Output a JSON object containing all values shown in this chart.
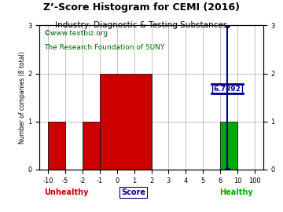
{
  "title": "Z’-Score Histogram for CEMI (2016)",
  "subtitle": "Industry: Diagnostic & Testing Substances",
  "watermark1": "©www.textbiz.org",
  "watermark2": "The Research Foundation of SUNY",
  "xlabel": "Score",
  "ylabel": "Number of companies (8 total)",
  "bar_positions": [
    {
      "x0_tick": 0,
      "x1_tick": 1,
      "height": 1,
      "color": "#cc0000"
    },
    {
      "x0_tick": 2,
      "x1_tick": 3,
      "height": 1,
      "color": "#cc0000"
    },
    {
      "x0_tick": 3,
      "x1_tick": 6,
      "height": 2,
      "color": "#cc0000"
    },
    {
      "x0_tick": 10,
      "x1_tick": 11,
      "height": 1,
      "color": "#00aa00"
    }
  ],
  "cemi_tick_x": 10.4,
  "cemi_label": "6.7892",
  "indicator_line_color": "#00008b",
  "indicator_dot_top_y": 3,
  "indicator_dot_bot_y": 0,
  "indicator_hline_y1": 1.58,
  "indicator_hline_y2": 1.78,
  "xtick_positions": [
    0,
    1,
    2,
    3,
    4,
    5,
    6,
    7,
    8,
    9,
    10,
    11,
    12
  ],
  "xtick_labels": [
    "-10",
    "-5",
    "-2",
    "-1",
    "0",
    "1",
    "2",
    "3",
    "4",
    "5",
    "6",
    "10",
    "100"
  ],
  "ylim": [
    0,
    3
  ],
  "xlim": [
    -0.5,
    12.5
  ],
  "unhealthy_label": "Unhealthy",
  "healthy_label": "Healthy",
  "unhealthy_color": "#cc0000",
  "healthy_color": "#00aa00",
  "score_label_color": "#000080",
  "grid_color": "#aaaaaa",
  "background_color": "#ffffff",
  "title_fontsize": 9,
  "subtitle_fontsize": 7.5,
  "watermark_fontsize": 6.5,
  "tick_fontsize": 6
}
